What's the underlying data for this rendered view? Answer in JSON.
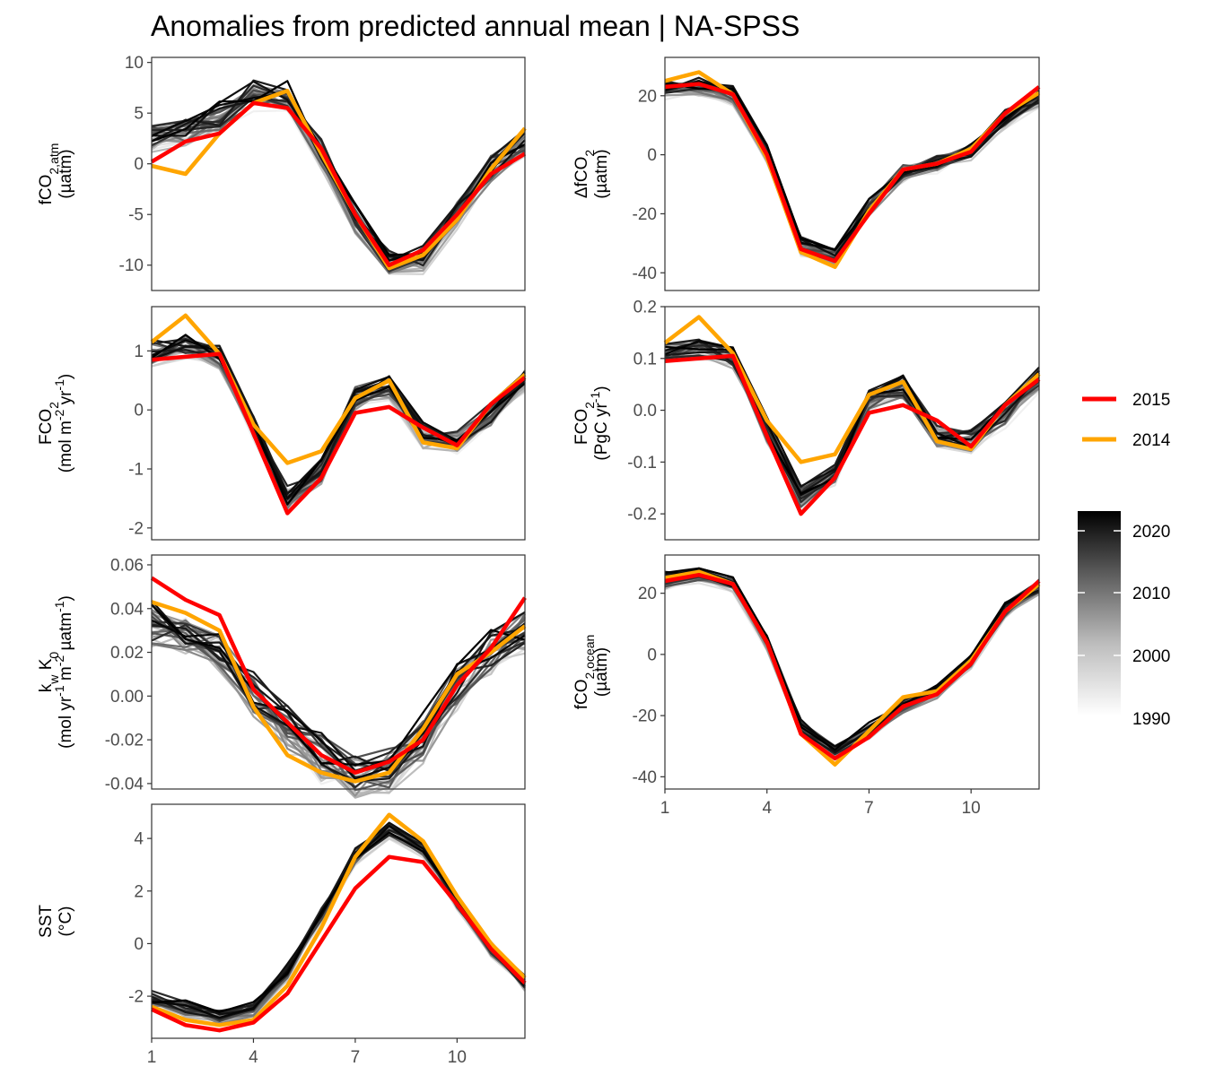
{
  "title": "Anomalies from predicted annual mean | NA-SPSS",
  "colors": {
    "highlight_2015": "#ff0000",
    "highlight_2014": "#ffa500",
    "background_years_dark": "#000000",
    "background_years_light": "#f0f0f0",
    "panel_border": "#333333"
  },
  "legend": {
    "highlight": [
      {
        "label": "2015",
        "color": "#ff0000"
      },
      {
        "label": "2014",
        "color": "#ffa500"
      }
    ],
    "gradient": {
      "labels": [
        "2020",
        "2010",
        "2000",
        "1990"
      ],
      "values": [
        2020,
        2010,
        2000,
        1990
      ],
      "range": [
        1990,
        2023
      ]
    }
  },
  "chart_data": [
    {
      "type": "line",
      "id": "fco2_atm",
      "ylabel_lines": [
        "fCO2,atm",
        "(µatm)"
      ],
      "x": [
        1,
        2,
        3,
        4,
        5,
        6,
        7,
        8,
        9,
        10,
        11,
        12
      ],
      "xticks": [],
      "ylim": [
        -12.5,
        10.5
      ],
      "yticks": [
        10,
        5,
        0,
        -5,
        -10
      ],
      "ytick_labels": [
        "10",
        "5",
        "0",
        "-5",
        "-10"
      ],
      "base": [
        2.5,
        3,
        4.5,
        6.8,
        6.5,
        1,
        -5.5,
        -9.8,
        -9.5,
        -5,
        -0.5,
        2
      ],
      "jitter": 1.2,
      "series": [
        {
          "name": "2015",
          "values": [
            0.2,
            2.2,
            3,
            6,
            5.5,
            1.5,
            -5,
            -10,
            -8.5,
            -5,
            -1,
            1
          ]
        },
        {
          "name": "2014",
          "values": [
            -0.2,
            -1,
            3,
            6,
            7.2,
            1,
            -5,
            -10.3,
            -9,
            -5.5,
            -0.5,
            3.5
          ]
        }
      ]
    },
    {
      "type": "line",
      "id": "dfco2",
      "ylabel_lines": [
        "ΔfCO2",
        "(µatm)"
      ],
      "x": [
        1,
        2,
        3,
        4,
        5,
        6,
        7,
        8,
        9,
        10,
        11,
        12
      ],
      "xticks": [],
      "ylim": [
        -46,
        33
      ],
      "yticks": [
        20,
        0,
        -20,
        -40
      ],
      "ytick_labels": [
        "20",
        "0",
        "-20",
        "-40"
      ],
      "base": [
        22,
        23,
        20,
        0,
        -31,
        -35,
        -18,
        -6,
        -3,
        1,
        12,
        19
      ],
      "jitter": 2.5,
      "series": [
        {
          "name": "2015",
          "values": [
            23,
            24,
            20.5,
            0,
            -32,
            -36,
            -20,
            -5,
            -3,
            1,
            14,
            23
          ]
        },
        {
          "name": "2014",
          "values": [
            25,
            28,
            20.5,
            -1,
            -33,
            -38,
            -19,
            -5,
            -3,
            2,
            14,
            21
          ]
        }
      ]
    },
    {
      "type": "line",
      "id": "fco2_flux_mol",
      "ylabel_lines": [
        "FCO2",
        "(mol m-2 yr-1)"
      ],
      "x": [
        1,
        2,
        3,
        4,
        5,
        6,
        7,
        8,
        9,
        10,
        11,
        12
      ],
      "xticks": [],
      "ylim": [
        -2.2,
        1.75
      ],
      "yticks": [
        1,
        0,
        -1,
        -2
      ],
      "ytick_labels": [
        "1",
        "0",
        "-1",
        "-2"
      ],
      "base": [
        0.95,
        1.1,
        0.9,
        -0.3,
        -1.5,
        -1.05,
        0.2,
        0.4,
        -0.45,
        -0.5,
        -0.1,
        0.5
      ],
      "jitter": 0.18,
      "series": [
        {
          "name": "2015",
          "values": [
            0.85,
            0.9,
            0.95,
            -0.4,
            -1.75,
            -1.15,
            -0.05,
            0.05,
            -0.3,
            -0.6,
            0.1,
            0.55
          ]
        },
        {
          "name": "2014",
          "values": [
            1.15,
            1.6,
            0.95,
            -0.25,
            -0.9,
            -0.7,
            0.2,
            0.5,
            -0.55,
            -0.65,
            0.1,
            0.6
          ]
        }
      ]
    },
    {
      "type": "line",
      "id": "fco2_flux_pg",
      "ylabel_lines": [
        "FCO2",
        "(PgC yr-1)"
      ],
      "x": [
        1,
        2,
        3,
        4,
        5,
        6,
        7,
        8,
        9,
        10,
        11,
        12
      ],
      "xticks": [],
      "ylim": [
        -0.25,
        0.2
      ],
      "yticks": [
        0.2,
        0.1,
        0.0,
        -0.1,
        -0.2
      ],
      "ytick_labels": [
        "0.2",
        "0.1",
        "0.0",
        "-0.1",
        "-0.2"
      ],
      "base": [
        0.11,
        0.12,
        0.1,
        -0.04,
        -0.17,
        -0.12,
        0.02,
        0.04,
        -0.05,
        -0.06,
        -0.01,
        0.06
      ],
      "jitter": 0.02,
      "series": [
        {
          "name": "2015",
          "values": [
            0.095,
            0.1,
            0.105,
            -0.05,
            -0.2,
            -0.13,
            -0.005,
            0.01,
            -0.02,
            -0.07,
            0.01,
            0.06
          ]
        },
        {
          "name": "2014",
          "values": [
            0.13,
            0.18,
            0.11,
            -0.02,
            -0.1,
            -0.085,
            0.03,
            0.055,
            -0.06,
            -0.075,
            0.01,
            0.07
          ]
        }
      ]
    },
    {
      "type": "line",
      "id": "kw_k0",
      "ylabel_lines": [
        "kw K0",
        "(mol yr-1 m-2 µatm-1)"
      ],
      "x": [
        1,
        2,
        3,
        4,
        5,
        6,
        7,
        8,
        9,
        10,
        11,
        12
      ],
      "xticks": [],
      "ylim": [
        -0.0425,
        0.0645
      ],
      "yticks": [
        0.06,
        0.04,
        0.02,
        0.0,
        -0.02,
        -0.04
      ],
      "ytick_labels": [
        "0.06",
        "0.04",
        "0.02",
        "0.00",
        "-0.02",
        "-0.04"
      ],
      "base": [
        0.032,
        0.03,
        0.022,
        0,
        -0.015,
        -0.028,
        -0.036,
        -0.034,
        -0.02,
        0.005,
        0.02,
        0.03
      ],
      "jitter": 0.009,
      "series": [
        {
          "name": "2015",
          "values": [
            0.054,
            0.044,
            0.037,
            0.003,
            -0.012,
            -0.027,
            -0.035,
            -0.03,
            -0.02,
            0.005,
            0.022,
            0.045
          ]
        },
        {
          "name": "2014",
          "values": [
            0.043,
            0.038,
            0.03,
            -0.005,
            -0.027,
            -0.035,
            -0.039,
            -0.035,
            -0.015,
            0.01,
            0.02,
            0.032
          ]
        }
      ]
    },
    {
      "type": "line",
      "id": "fco2_ocean",
      "ylabel_lines": [
        "fCO2,ocean",
        "(µatm)"
      ],
      "x": [
        1,
        2,
        3,
        4,
        5,
        6,
        7,
        8,
        9,
        10,
        11,
        12
      ],
      "xticks": [
        1,
        4,
        7,
        10
      ],
      "xtick_labels": [
        "1",
        "4",
        "7",
        "10"
      ],
      "ylim": [
        -44,
        32.5
      ],
      "yticks": [
        20,
        0,
        -20,
        -40
      ],
      "ytick_labels": [
        "20",
        "0",
        "-20",
        "-40"
      ],
      "base": [
        24,
        26,
        23,
        4,
        -24,
        -32,
        -25,
        -17,
        -12,
        -2,
        14,
        22
      ],
      "jitter": 2.2,
      "series": [
        {
          "name": "2015",
          "values": [
            24,
            26,
            23,
            4,
            -26,
            -34,
            -27,
            -17,
            -13,
            -3,
            14,
            24
          ]
        },
        {
          "name": "2014",
          "values": [
            25,
            27,
            23,
            4,
            -26,
            -36,
            -25,
            -14,
            -12,
            -2,
            14,
            23
          ]
        }
      ]
    },
    {
      "type": "line",
      "id": "sst",
      "ylabel_lines": [
        "SST",
        "(°C)"
      ],
      "x": [
        1,
        2,
        3,
        4,
        5,
        6,
        7,
        8,
        9,
        10,
        11,
        12
      ],
      "xticks": [
        1,
        4,
        7,
        10
      ],
      "xtick_labels": [
        "1",
        "4",
        "7",
        "10"
      ],
      "ylim": [
        -3.6,
        5.3
      ],
      "yticks": [
        4,
        2,
        0,
        -2
      ],
      "ytick_labels": [
        "4",
        "2",
        "0",
        "-2"
      ],
      "base": [
        -2.1,
        -2.5,
        -2.8,
        -2.5,
        -1.1,
        1.1,
        3.3,
        4.3,
        3.6,
        1.6,
        -0.2,
        -1.5
      ],
      "jitter": 0.25,
      "series": [
        {
          "name": "2015",
          "values": [
            -2.5,
            -3.1,
            -3.3,
            -3.0,
            -1.9,
            0.1,
            2.1,
            3.3,
            3.1,
            1.5,
            -0.2,
            -1.5
          ]
        },
        {
          "name": "2014",
          "values": [
            -2.4,
            -2.9,
            -3.1,
            -2.9,
            -1.6,
            0.6,
            3.3,
            4.9,
            3.9,
            1.8,
            0.0,
            -1.3
          ]
        }
      ]
    }
  ]
}
